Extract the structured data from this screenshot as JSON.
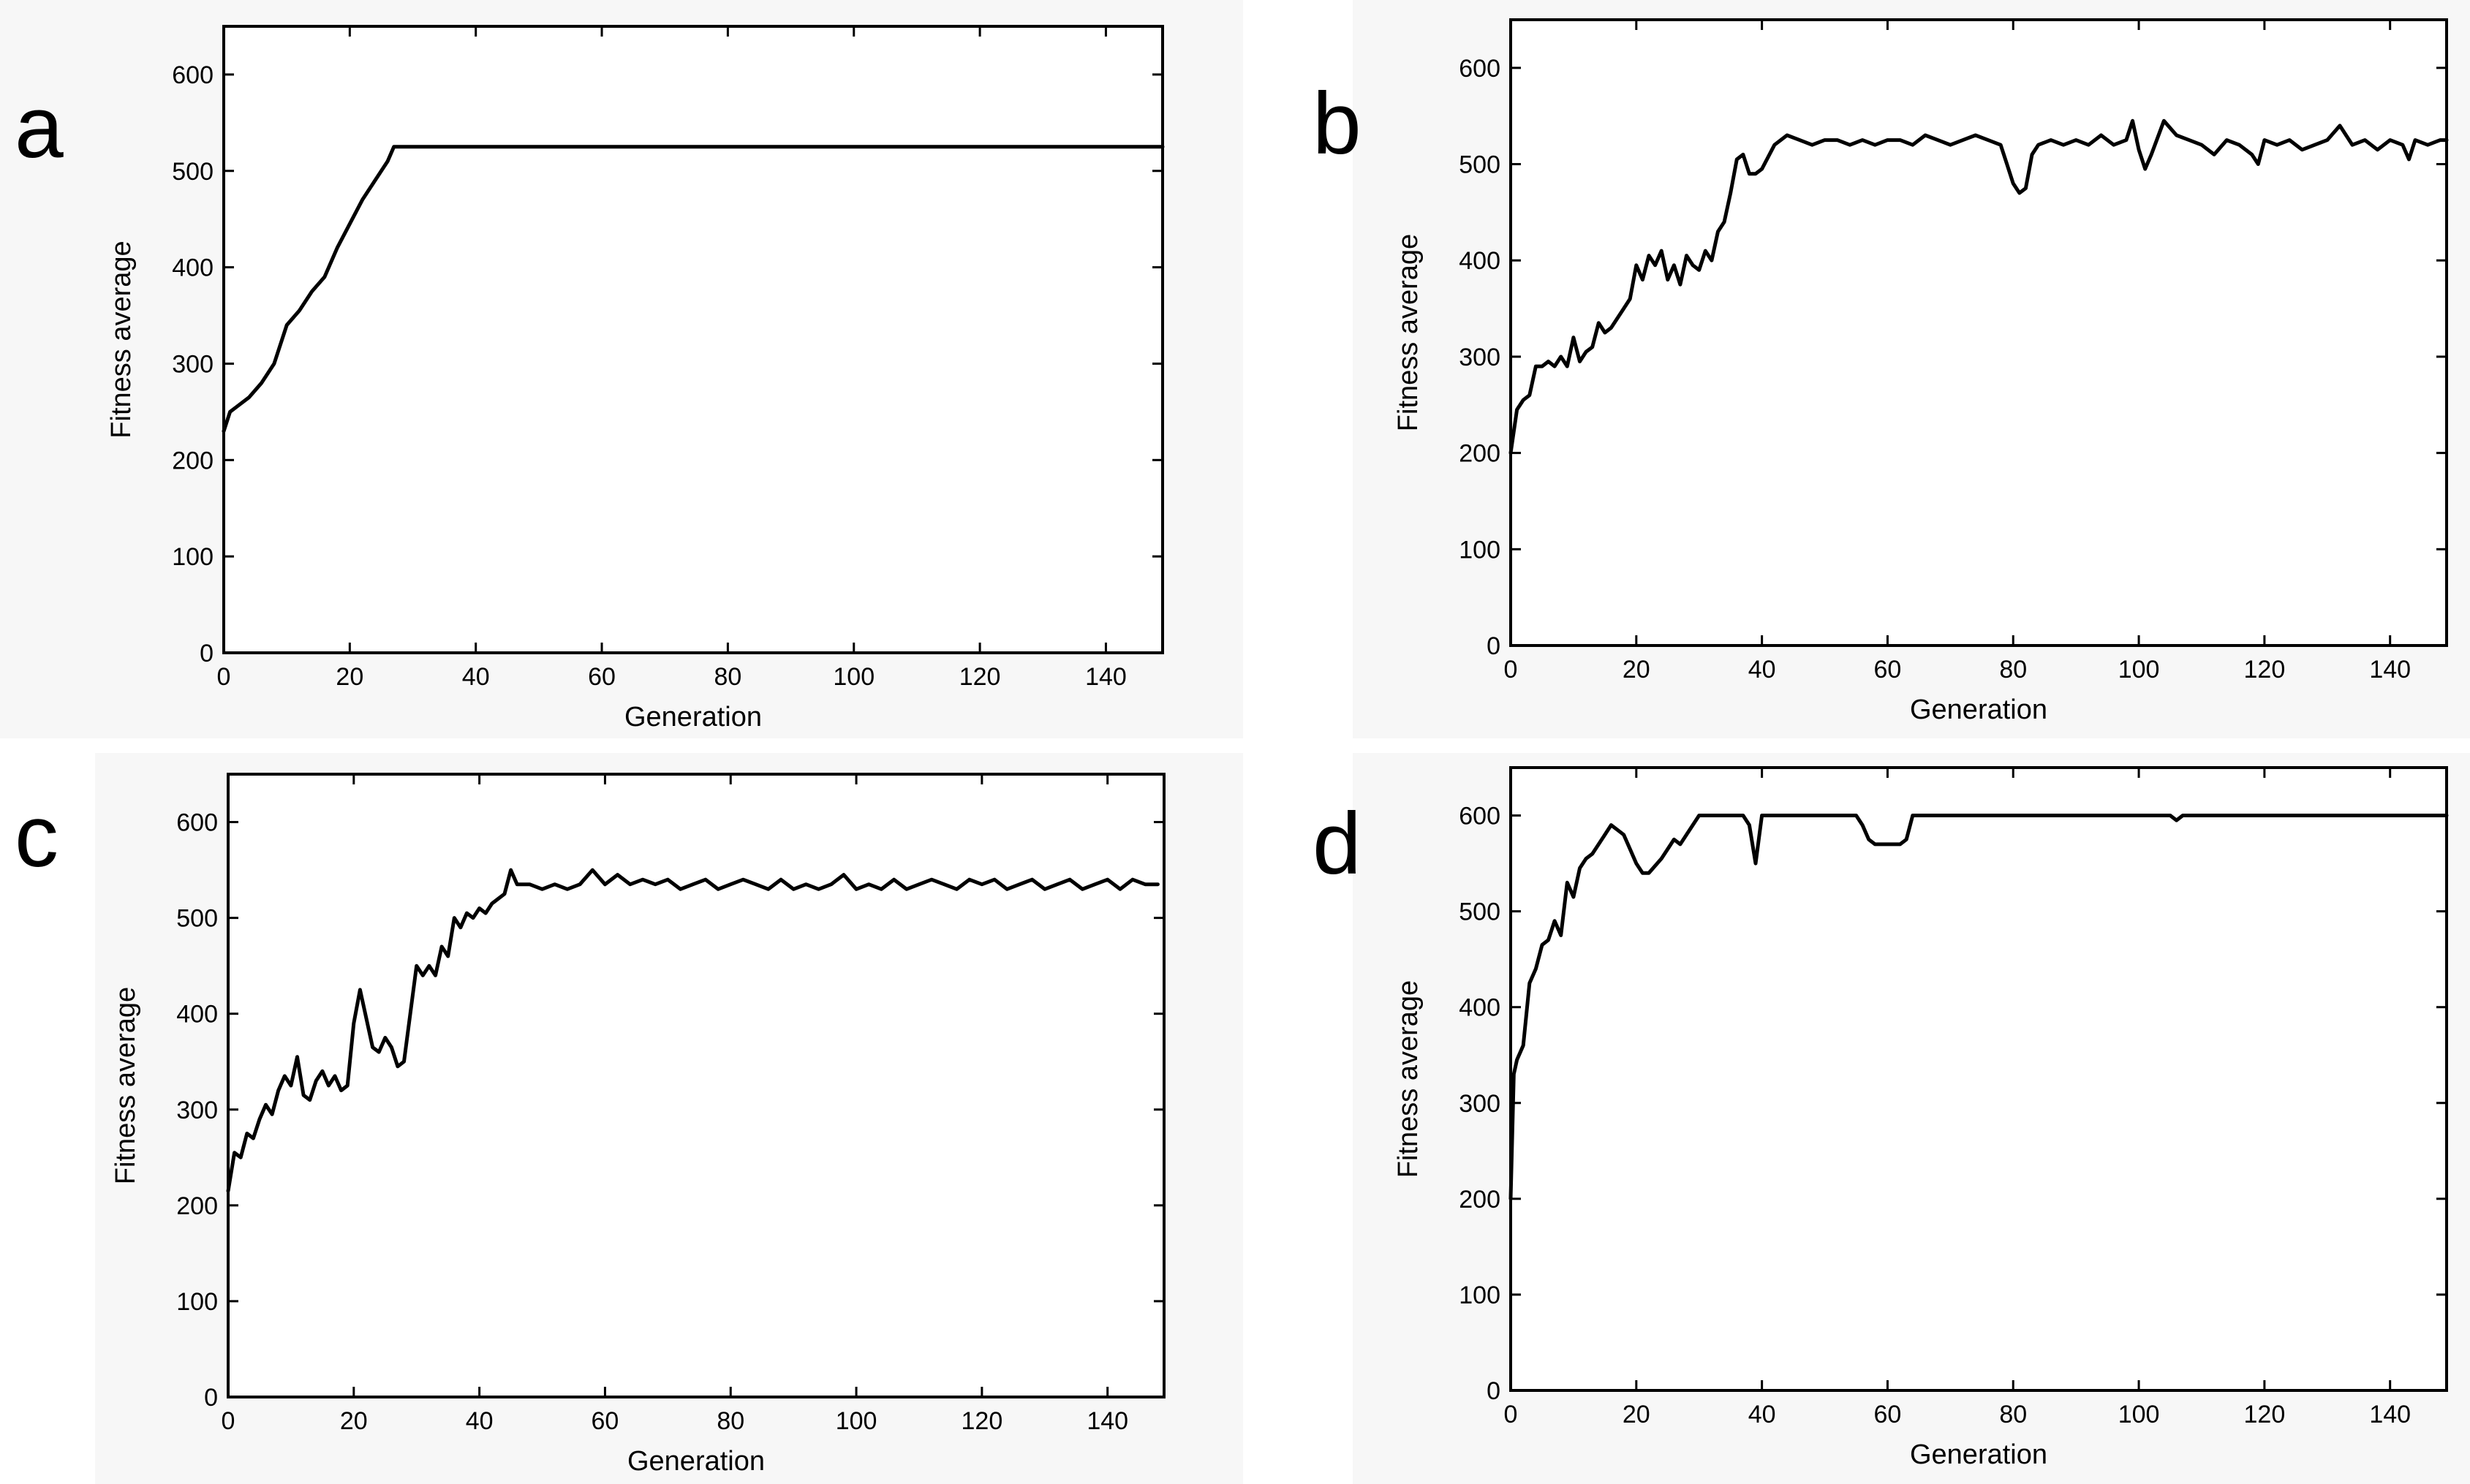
{
  "chart_data": [
    {
      "panel": "a",
      "type": "line",
      "xlabel": "Generation",
      "ylabel": "Fitness average",
      "xlim": [
        0,
        149
      ],
      "ylim": [
        0,
        650
      ],
      "xticks": [
        0,
        20,
        40,
        60,
        80,
        100,
        120,
        140
      ],
      "yticks": [
        0,
        100,
        200,
        300,
        400,
        500,
        600
      ],
      "series": [
        {
          "x": [
            0,
            1,
            2,
            4,
            6,
            8,
            10,
            12,
            14,
            16,
            18,
            20,
            22,
            24,
            26,
            27,
            40,
            60,
            80,
            100,
            120,
            140,
            149
          ],
          "y": [
            230,
            250,
            255,
            265,
            280,
            300,
            340,
            355,
            375,
            390,
            420,
            445,
            470,
            490,
            510,
            525,
            525,
            525,
            525,
            525,
            525,
            525,
            525
          ]
        }
      ]
    },
    {
      "panel": "b",
      "type": "line",
      "xlabel": "Generation",
      "ylabel": "Fitness average",
      "xlim": [
        0,
        149
      ],
      "ylim": [
        0,
        650
      ],
      "xticks": [
        0,
        20,
        40,
        60,
        80,
        100,
        120,
        140
      ],
      "yticks": [
        0,
        100,
        200,
        300,
        400,
        500,
        600
      ],
      "series": [
        {
          "x": [
            0,
            1,
            2,
            3,
            4,
            5,
            6,
            7,
            8,
            9,
            10,
            11,
            12,
            13,
            14,
            15,
            16,
            17,
            18,
            19,
            20,
            21,
            22,
            23,
            24,
            25,
            26,
            27,
            28,
            29,
            30,
            31,
            32,
            33,
            34,
            35,
            36,
            37,
            38,
            39,
            40,
            42,
            44,
            46,
            48,
            50,
            52,
            54,
            56,
            58,
            60,
            62,
            64,
            66,
            68,
            70,
            72,
            74,
            76,
            78,
            79,
            80,
            81,
            82,
            83,
            84,
            86,
            88,
            90,
            92,
            94,
            96,
            98,
            99,
            100,
            101,
            102,
            104,
            106,
            108,
            110,
            112,
            114,
            116,
            118,
            119,
            120,
            122,
            124,
            126,
            128,
            130,
            132,
            134,
            136,
            138,
            140,
            142,
            143,
            144,
            146,
            148,
            149
          ],
          "y": [
            200,
            245,
            255,
            260,
            290,
            290,
            295,
            290,
            300,
            290,
            320,
            295,
            305,
            310,
            335,
            325,
            330,
            340,
            350,
            360,
            395,
            380,
            405,
            395,
            410,
            380,
            395,
            375,
            405,
            395,
            390,
            410,
            400,
            430,
            440,
            470,
            505,
            510,
            490,
            490,
            495,
            520,
            530,
            525,
            520,
            525,
            525,
            520,
            525,
            520,
            525,
            525,
            520,
            530,
            525,
            520,
            525,
            530,
            525,
            520,
            500,
            480,
            470,
            475,
            510,
            520,
            525,
            520,
            525,
            520,
            530,
            520,
            525,
            545,
            515,
            495,
            510,
            545,
            530,
            525,
            520,
            510,
            525,
            520,
            510,
            500,
            525,
            520,
            525,
            515,
            520,
            525,
            540,
            520,
            525,
            515,
            525,
            520,
            505,
            525,
            520,
            525,
            525
          ]
        }
      ]
    },
    {
      "panel": "c",
      "type": "line",
      "xlabel": "Generation",
      "ylabel": "Fitness average",
      "xlim": [
        0,
        149
      ],
      "ylim": [
        0,
        650
      ],
      "xticks": [
        0,
        20,
        40,
        60,
        80,
        100,
        120,
        140
      ],
      "yticks": [
        0,
        100,
        200,
        300,
        400,
        500,
        600
      ],
      "series": [
        {
          "x": [
            0,
            1,
            2,
            3,
            4,
            5,
            6,
            7,
            8,
            9,
            10,
            11,
            12,
            13,
            14,
            15,
            16,
            17,
            18,
            19,
            20,
            21,
            22,
            23,
            24,
            25,
            26,
            27,
            28,
            29,
            30,
            31,
            32,
            33,
            34,
            35,
            36,
            37,
            38,
            39,
            40,
            41,
            42,
            43,
            44,
            45,
            46,
            48,
            50,
            52,
            54,
            56,
            58,
            60,
            62,
            64,
            66,
            68,
            70,
            72,
            74,
            76,
            78,
            80,
            82,
            84,
            86,
            88,
            90,
            92,
            94,
            96,
            98,
            100,
            102,
            104,
            106,
            108,
            110,
            112,
            114,
            116,
            118,
            120,
            122,
            124,
            126,
            128,
            130,
            132,
            134,
            136,
            138,
            140,
            142,
            143,
            144,
            146,
            148
          ],
          "y": [
            215,
            255,
            250,
            275,
            270,
            290,
            305,
            295,
            320,
            335,
            325,
            355,
            315,
            310,
            330,
            340,
            325,
            335,
            320,
            325,
            390,
            425,
            395,
            365,
            360,
            375,
            365,
            345,
            350,
            400,
            450,
            440,
            450,
            440,
            470,
            460,
            500,
            490,
            505,
            500,
            510,
            505,
            515,
            520,
            525,
            550,
            535,
            535,
            530,
            535,
            530,
            535,
            550,
            535,
            545,
            535,
            540,
            535,
            540,
            530,
            535,
            540,
            530,
            535,
            540,
            535,
            530,
            540,
            530,
            535,
            530,
            535,
            545,
            530,
            535,
            530,
            540,
            530,
            535,
            540,
            535,
            530,
            540,
            535,
            540,
            530,
            535,
            540,
            530,
            535,
            540,
            530,
            535,
            540,
            530,
            535,
            540,
            535,
            535
          ]
        }
      ]
    },
    {
      "panel": "d",
      "type": "line",
      "xlabel": "Generation",
      "ylabel": "Fitness average",
      "xlim": [
        0,
        149
      ],
      "ylim": [
        0,
        650
      ],
      "xticks": [
        0,
        20,
        40,
        60,
        80,
        100,
        120,
        140
      ],
      "yticks": [
        0,
        100,
        200,
        300,
        400,
        500,
        600
      ],
      "series": [
        {
          "x": [
            0,
            0.5,
            1,
            2,
            3,
            4,
            5,
            6,
            7,
            8,
            9,
            10,
            11,
            12,
            13,
            14,
            15,
            16,
            17,
            18,
            19,
            20,
            21,
            22,
            24,
            26,
            27,
            28,
            30,
            32,
            34,
            36,
            37,
            38,
            39,
            40,
            42,
            44,
            50,
            55,
            56,
            57,
            58,
            60,
            62,
            63,
            64,
            66,
            70,
            80,
            90,
            100,
            104,
            105,
            106,
            107,
            108,
            110,
            120,
            130,
            140,
            148,
            149
          ],
          "y": [
            200,
            330,
            345,
            360,
            425,
            440,
            465,
            470,
            490,
            475,
            530,
            515,
            545,
            555,
            560,
            570,
            580,
            590,
            585,
            580,
            565,
            550,
            540,
            540,
            555,
            575,
            570,
            580,
            600,
            600,
            600,
            600,
            600,
            590,
            550,
            600,
            600,
            600,
            600,
            600,
            590,
            575,
            570,
            570,
            570,
            575,
            600,
            600,
            600,
            600,
            600,
            600,
            600,
            600,
            595,
            600,
            600,
            600,
            600,
            600,
            600,
            600,
            600
          ]
        }
      ]
    }
  ]
}
